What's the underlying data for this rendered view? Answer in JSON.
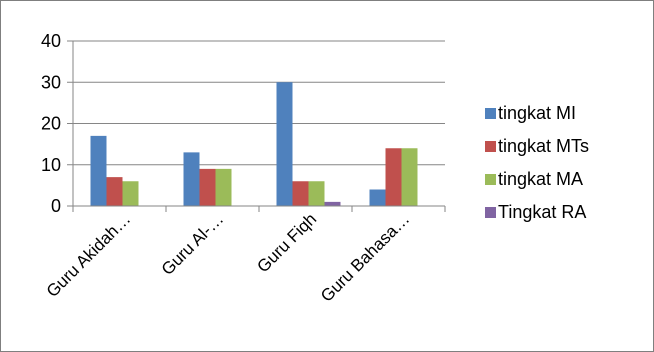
{
  "chart_data": {
    "type": "bar",
    "categories": [
      "Guru Akidah…",
      "Guru Al-…",
      "Guru Fiqh",
      "Guru Bahasa…"
    ],
    "series": [
      {
        "name": "tingkat MI",
        "color": "#4f81bd",
        "values": [
          17,
          13,
          30,
          4
        ]
      },
      {
        "name": "tingkat MTs",
        "color": "#c0504d",
        "values": [
          7,
          9,
          6,
          14
        ]
      },
      {
        "name": "tingkat MA",
        "color": "#9bbb59",
        "values": [
          6,
          9,
          6,
          14
        ]
      },
      {
        "name": "Tingkat RA",
        "color": "#8064a2",
        "values": [
          0,
          0,
          1,
          0
        ]
      }
    ],
    "yticks": [
      "0",
      "10",
      "20",
      "30",
      "40"
    ],
    "ylim": [
      0,
      40
    ],
    "grid": true,
    "legend_position": "right"
  }
}
